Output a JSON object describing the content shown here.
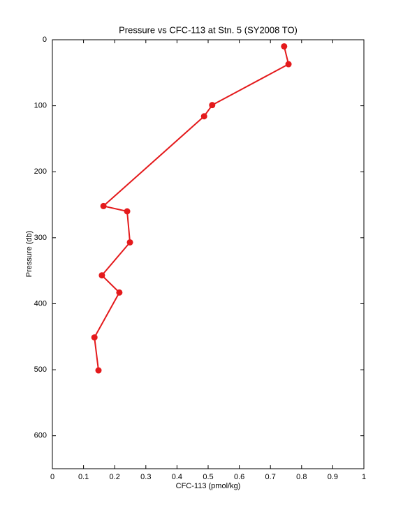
{
  "chart_data": {
    "type": "line",
    "title": "Pressure vs CFC-113 at Stn. 5 (SY2008 TO)",
    "x_label": "CFC-113 (pmol/kg)",
    "y_label": "Pressure (db)",
    "x": [
      0.744,
      0.758,
      0.513,
      0.487,
      0.164,
      0.24,
      0.249,
      0.159,
      0.215,
      0.135,
      0.148
    ],
    "series": [
      {
        "color": "#e41a1c",
        "values": [
          10,
          37,
          99,
          116,
          252,
          260,
          307,
          357,
          383,
          451,
          501
        ]
      }
    ],
    "xlim": [
      0,
      1
    ],
    "xticks": [
      0,
      0.1,
      0.2,
      0.3,
      0.4,
      0.5,
      0.6,
      0.7,
      0.8,
      0.9,
      1
    ],
    "ylim": [
      0,
      650
    ],
    "yticks": [
      0,
      100,
      200,
      300,
      400,
      500,
      600
    ],
    "y_inverted": true,
    "markers": true,
    "grid": false
  }
}
